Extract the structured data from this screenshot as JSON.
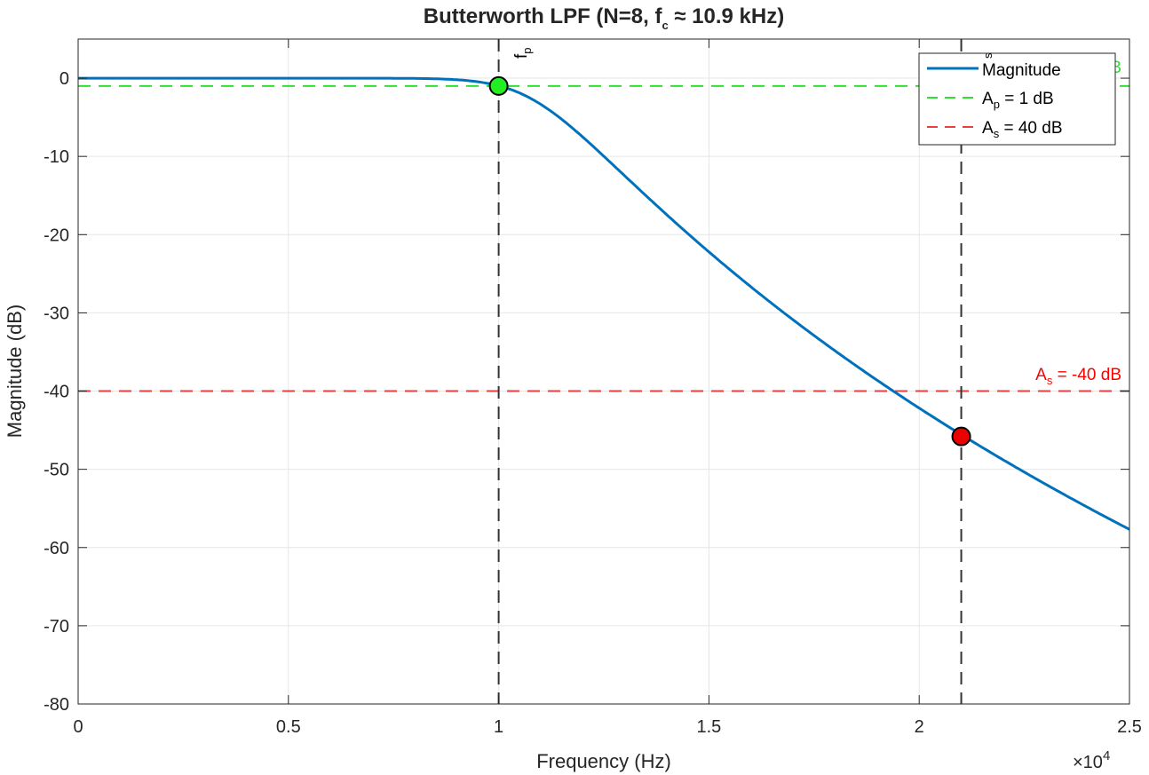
{
  "chart_data": {
    "type": "line",
    "title": "Butterworth LPF (N=8, f_c ≈ 10.9 kHz)",
    "title_parts": {
      "prefix": "Butterworth  LPF  (N=8,  f",
      "sub": "c",
      "suffix": "  ≈  10.9  kHz)"
    },
    "xlabel": "Frequency (Hz)",
    "ylabel": "Magnitude (dB)",
    "x_exponent_label": "×10",
    "x_exponent_power": "4",
    "xlim": [
      0,
      25000
    ],
    "ylim": [
      -80,
      5
    ],
    "x_ticks": [
      0,
      5000,
      10000,
      15000,
      20000,
      25000
    ],
    "x_tick_labels": [
      "0",
      "0.5",
      "1",
      "1.5",
      "2",
      "2.5"
    ],
    "y_ticks": [
      -80,
      -70,
      -60,
      -50,
      -40,
      -30,
      -20,
      -10,
      0
    ],
    "y_tick_labels": [
      "-80",
      "-70",
      "-60",
      "-50",
      "-40",
      "-30",
      "-20",
      "-10",
      "0"
    ],
    "grid": true,
    "legend_position": "top-right",
    "series": [
      {
        "name": "Magnitude",
        "color": "#0072BD",
        "style": "solid",
        "filter": {
          "order": 8,
          "fc_hz": 10900
        }
      }
    ],
    "reference_lines": [
      {
        "name": "Ap",
        "legend": {
          "main": "A",
          "sub": "p",
          "rest": " =  1  dB"
        },
        "axis": "y",
        "value": -1,
        "color": "#33DD33",
        "style": "dashed"
      },
      {
        "name": "As",
        "legend": {
          "main": "A",
          "sub": "s",
          "rest": " =  40  dB"
        },
        "axis": "y",
        "value": -40,
        "color": "#E84040",
        "style": "dashed"
      }
    ],
    "vertical_lines": [
      {
        "label_main": "f",
        "label_sub": "p",
        "value": 10000,
        "color": "#333333",
        "style": "dashed"
      },
      {
        "label_main": "",
        "label_sub": "s",
        "value": 21000,
        "color": "#333333",
        "style": "dashed"
      }
    ],
    "markers": [
      {
        "x": 10000,
        "y": -1,
        "color": "#22EE22"
      },
      {
        "x": 21000,
        "y": -45.8,
        "color": "#EE0000"
      }
    ],
    "annotations": [
      {
        "id": "as",
        "main": "A",
        "sub": "s",
        "rest": " =  -40  dB",
        "color": "#FF0000",
        "x": 25000,
        "y": -40
      },
      {
        "id": "ap",
        "text": "B",
        "color": "#33DD33",
        "x": 25000,
        "y": -1
      }
    ]
  }
}
